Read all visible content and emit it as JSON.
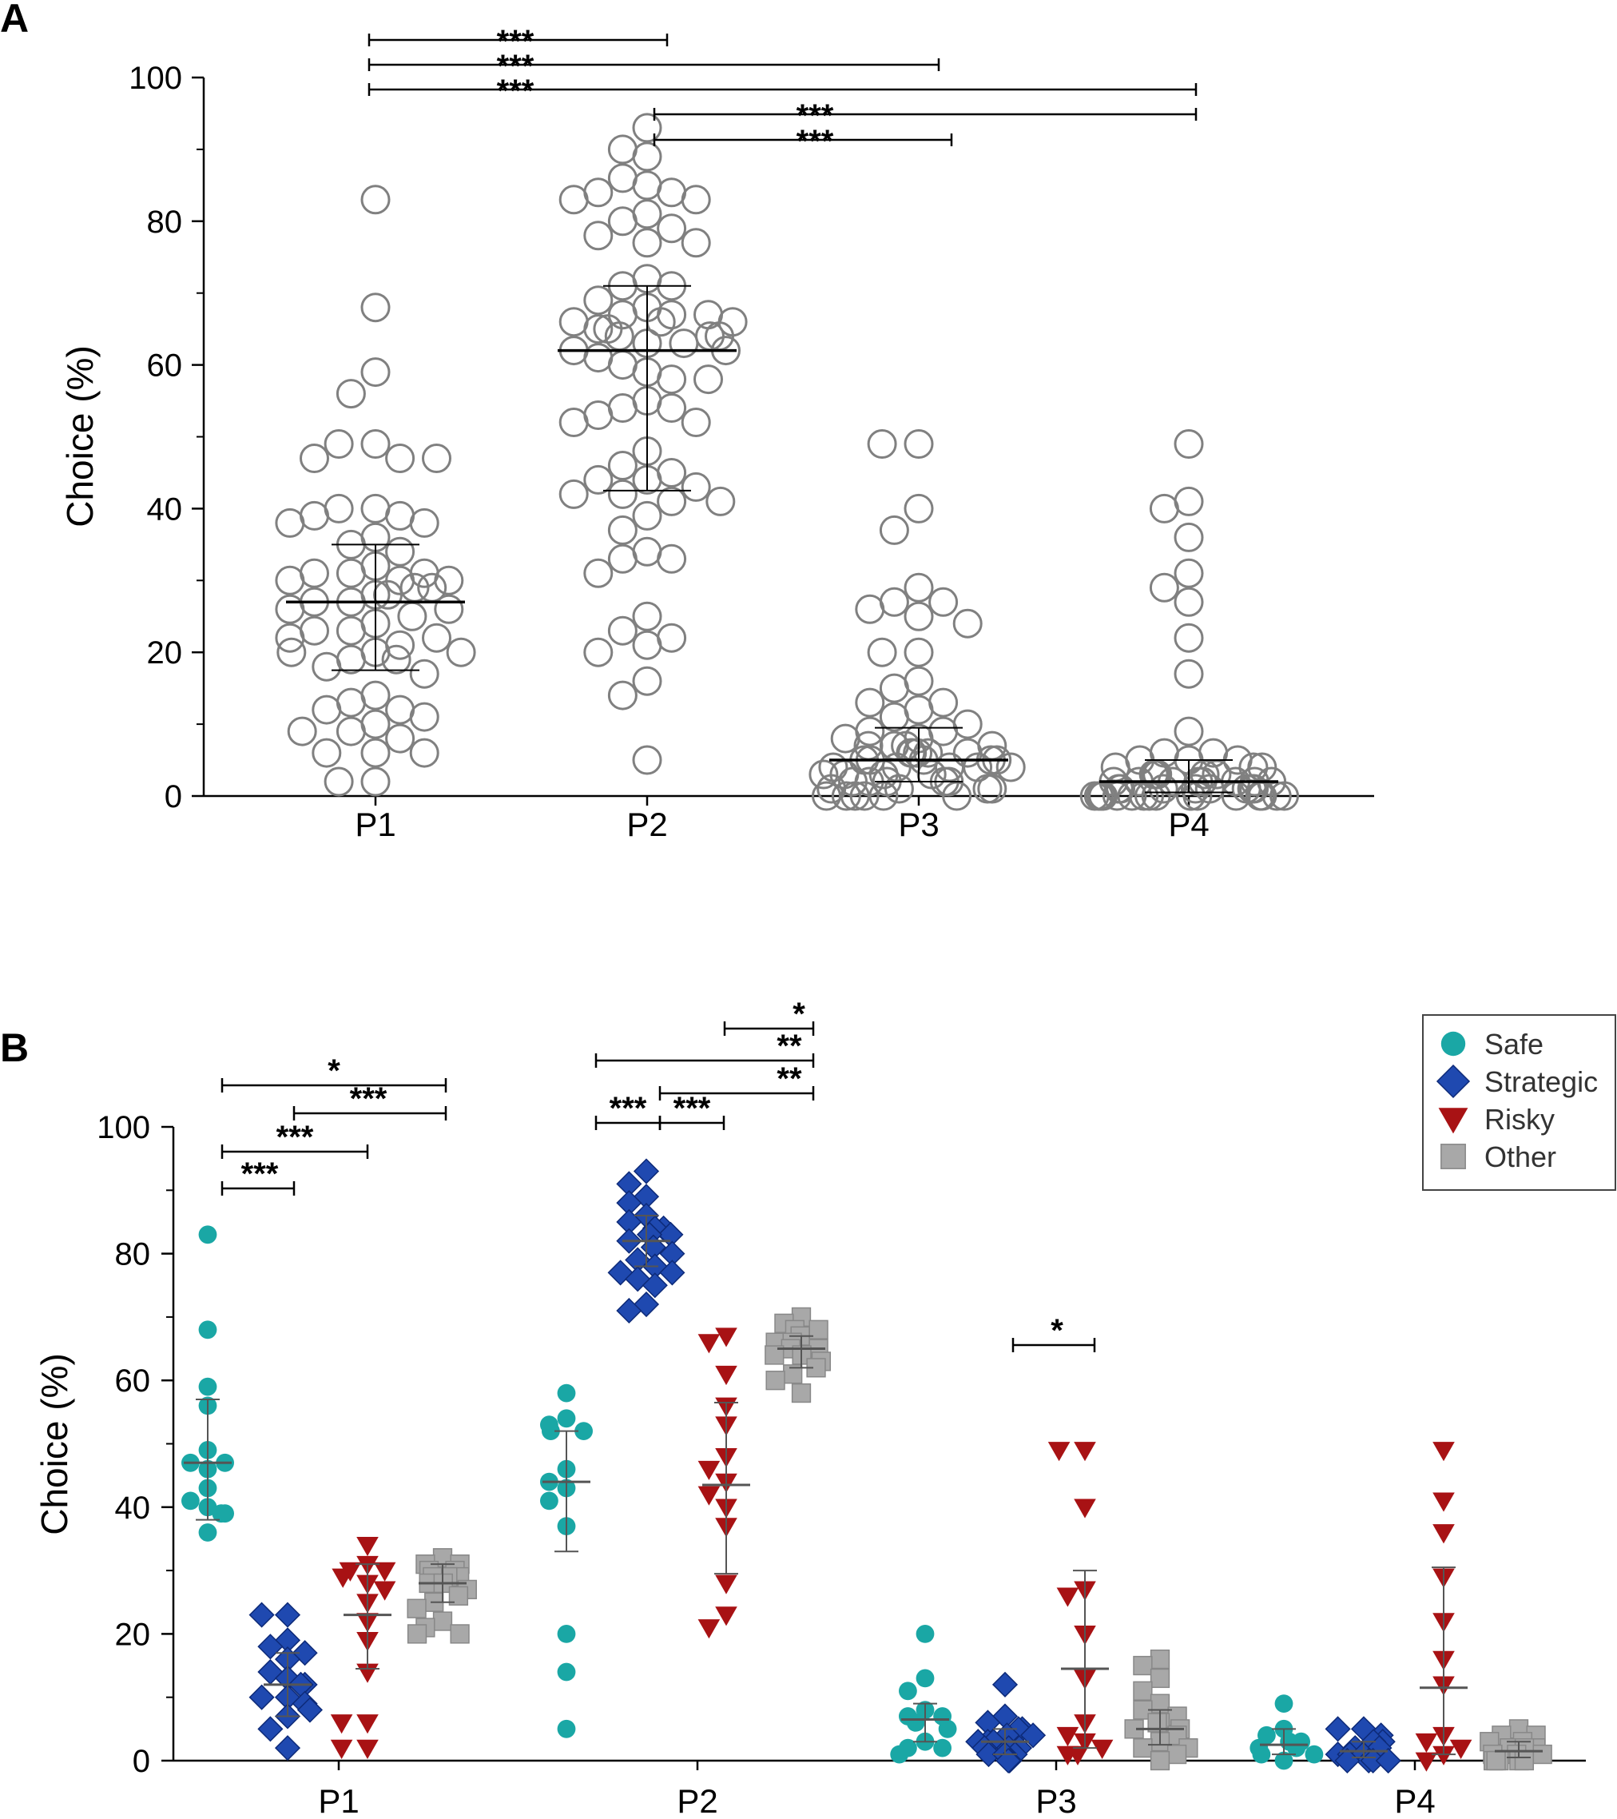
{
  "chart_data": [
    {
      "panel": "A",
      "type": "scatter",
      "ylabel": "Choice (%)",
      "ylim": [
        0,
        100
      ],
      "yticks": [
        "0",
        "20",
        "40",
        "60",
        "80",
        "100"
      ],
      "categories": [
        "P1",
        "P2",
        "P3",
        "P4"
      ],
      "marker_color": "#808080",
      "summary": [
        {
          "category": "P1",
          "median": 27,
          "q1": 17.5,
          "q3": 35
        },
        {
          "category": "P2",
          "median": 62,
          "q1": 42.5,
          "q3": 71
        },
        {
          "category": "P3",
          "median": 5,
          "q1": 2,
          "q3": 9.5
        },
        {
          "category": "P4",
          "median": 2,
          "q1": 0.5,
          "q3": 5
        }
      ],
      "series": [
        {
          "name": "P1",
          "values": [
            83,
            68,
            59,
            56,
            49,
            49,
            47,
            47,
            47,
            40,
            40,
            39,
            39,
            38,
            38,
            36,
            35,
            34,
            32,
            31,
            31,
            31,
            30,
            30,
            30,
            29,
            29,
            28,
            28,
            27,
            27,
            26,
            26,
            25,
            24,
            23,
            23,
            22,
            22,
            21,
            20,
            20,
            20,
            19,
            19,
            18,
            17,
            14,
            13,
            12,
            12,
            11,
            10,
            9,
            9,
            8,
            6,
            6,
            6,
            2,
            2
          ]
        },
        {
          "name": "P2",
          "values": [
            93,
            90,
            89,
            86,
            85,
            84,
            84,
            83,
            83,
            81,
            80,
            79,
            78,
            77,
            77,
            72,
            71,
            71,
            69,
            68,
            67,
            67,
            67,
            66,
            66,
            66,
            65,
            65,
            64,
            64,
            64,
            63,
            63,
            62,
            62,
            61,
            60,
            59,
            58,
            58,
            55,
            54,
            54,
            53,
            52,
            52,
            48,
            46,
            45,
            44,
            44,
            43,
            42,
            42,
            41,
            41,
            39,
            37,
            34,
            33,
            33,
            31,
            25,
            23,
            22,
            21,
            20,
            16,
            14,
            5
          ]
        },
        {
          "name": "P3",
          "values": [
            49,
            49,
            40,
            37,
            29,
            27,
            27,
            26,
            25,
            24,
            20,
            20,
            16,
            15,
            13,
            13,
            12,
            11,
            10,
            9,
            9,
            8,
            8,
            7,
            7,
            7,
            7,
            6,
            6,
            6,
            6,
            6,
            5,
            5,
            5,
            5,
            5,
            4,
            4,
            4,
            4,
            4,
            3,
            3,
            3,
            3,
            2,
            2,
            2,
            2,
            2,
            1,
            1,
            1,
            1,
            0,
            0,
            0,
            0,
            0,
            0
          ]
        },
        {
          "name": "P4",
          "values": [
            49,
            41,
            40,
            36,
            31,
            29,
            27,
            22,
            17,
            9,
            6,
            6,
            5,
            5,
            5,
            4,
            4,
            4,
            3,
            3,
            3,
            3,
            3,
            2,
            2,
            2,
            2,
            2,
            2,
            2,
            2,
            1,
            1,
            1,
            1,
            1,
            1,
            1,
            1,
            0,
            0,
            0,
            0,
            0,
            0,
            0,
            0,
            0,
            0,
            0,
            0,
            0,
            0,
            0,
            0,
            0
          ]
        }
      ],
      "significance": [
        {
          "from": "P1",
          "to": "P2",
          "label": "***"
        },
        {
          "from": "P1",
          "to": "P3",
          "label": "***"
        },
        {
          "from": "P1",
          "to": "P4",
          "label": "***"
        },
        {
          "from": "P2",
          "to": "P4",
          "label": "***"
        },
        {
          "from": "P2",
          "to": "P3",
          "label": "***"
        }
      ]
    },
    {
      "panel": "B",
      "type": "scatter",
      "ylabel": "Choice (%)",
      "ylim": [
        0,
        100
      ],
      "yticks": [
        "0",
        "20",
        "40",
        "60",
        "80",
        "100"
      ],
      "categories": [
        "P1",
        "P2",
        "P3",
        "P4"
      ],
      "legend_position": "top-right",
      "groups": [
        {
          "name": "Safe",
          "marker": "circle",
          "color": "#1aa7a5"
        },
        {
          "name": "Strategic",
          "marker": "diamond",
          "color": "#1f49b0"
        },
        {
          "name": "Risky",
          "marker": "triangle-down",
          "color": "#a81214"
        },
        {
          "name": "Other",
          "marker": "square",
          "color": "#a8a8a8"
        }
      ],
      "series": [
        {
          "category": "P1",
          "group": "Safe",
          "mean": 47,
          "sd_low": 38,
          "sd_high": 57,
          "values": [
            83,
            68,
            59,
            56,
            49,
            47,
            47,
            46,
            43,
            41,
            40,
            39,
            39,
            36
          ]
        },
        {
          "category": "P1",
          "group": "Strategic",
          "mean": 12,
          "sd_low": 7,
          "sd_high": 17,
          "values": [
            23,
            23,
            19,
            18,
            17,
            16,
            14,
            13,
            12,
            12,
            10,
            10,
            9,
            8,
            7,
            5,
            2
          ]
        },
        {
          "category": "P1",
          "group": "Risky",
          "mean": 23,
          "sd_low": 14.5,
          "sd_high": 31,
          "values": [
            34,
            31,
            30,
            30,
            29,
            28,
            27,
            25,
            22,
            19,
            14,
            6,
            6,
            2,
            2
          ]
        },
        {
          "category": "P1",
          "group": "Other",
          "mean": 28,
          "sd_low": 25,
          "sd_high": 31,
          "values": [
            32,
            31,
            31,
            30,
            30,
            29,
            29,
            29,
            28,
            28,
            27,
            26,
            25,
            24,
            22,
            21,
            20,
            20
          ]
        },
        {
          "category": "P2",
          "group": "Safe",
          "mean": 44,
          "sd_low": 33,
          "sd_high": 52,
          "values": [
            58,
            54,
            53,
            52,
            52,
            46,
            44,
            43,
            41,
            37,
            20,
            14,
            5
          ]
        },
        {
          "category": "P2",
          "group": "Strategic",
          "mean": 82,
          "sd_low": 78,
          "sd_high": 86,
          "values": [
            93,
            91,
            89,
            88,
            86,
            85,
            84,
            84,
            83,
            83,
            82,
            81,
            80,
            79,
            78,
            77,
            77,
            76,
            75,
            72,
            71
          ]
        },
        {
          "category": "P2",
          "group": "Risky",
          "mean": 43.5,
          "sd_low": 29.5,
          "sd_high": 56.5,
          "values": [
            67,
            66,
            61,
            56,
            53,
            48,
            46,
            44,
            42,
            40,
            37,
            28,
            23,
            21
          ]
        },
        {
          "category": "P2",
          "group": "Other",
          "mean": 65,
          "sd_low": 62,
          "sd_high": 67,
          "values": [
            70,
            69,
            68,
            68,
            67,
            66,
            66,
            65,
            65,
            64,
            64,
            63,
            62,
            61,
            60,
            58
          ]
        },
        {
          "category": "P3",
          "group": "Safe",
          "mean": 6.5,
          "sd_low": 3,
          "sd_high": 9,
          "values": [
            20,
            13,
            11,
            8,
            7,
            7,
            6,
            5,
            3,
            2,
            2,
            1
          ]
        },
        {
          "category": "P3",
          "group": "Strategic",
          "mean": 3,
          "sd_low": 1,
          "sd_high": 5,
          "values": [
            12,
            7,
            6,
            5,
            5,
            4,
            4,
            3,
            3,
            3,
            2,
            2,
            2,
            1,
            1,
            1,
            0,
            0
          ]
        },
        {
          "category": "P3",
          "group": "Risky",
          "mean": 14.5,
          "sd_low": 2,
          "sd_high": 30,
          "values": [
            49,
            49,
            40,
            27,
            26,
            20,
            13,
            6,
            4,
            3,
            2,
            1,
            1
          ]
        },
        {
          "category": "P3",
          "group": "Other",
          "mean": 5,
          "sd_low": 2.5,
          "sd_high": 8,
          "values": [
            16,
            15,
            13,
            11,
            9,
            8,
            7,
            6,
            6,
            5,
            5,
            4,
            3,
            2,
            2,
            1,
            0
          ]
        },
        {
          "category": "P4",
          "group": "Safe",
          "mean": 2.5,
          "sd_low": 1,
          "sd_high": 5,
          "values": [
            9,
            5,
            4,
            3,
            3,
            2,
            2,
            1,
            1,
            0
          ]
        },
        {
          "category": "P4",
          "group": "Strategic",
          "mean": 1.5,
          "sd_low": 0.5,
          "sd_high": 3,
          "values": [
            5,
            5,
            4,
            3,
            3,
            2,
            2,
            1,
            1,
            1,
            0,
            0,
            0,
            0,
            0
          ]
        },
        {
          "category": "P4",
          "group": "Risky",
          "mean": 11.5,
          "sd_low": 1,
          "sd_high": 30.5,
          "values": [
            49,
            41,
            36,
            29,
            22,
            16,
            12,
            4,
            3,
            2,
            1,
            0
          ]
        },
        {
          "category": "P4",
          "group": "Other",
          "mean": 1.5,
          "sd_low": 0.5,
          "sd_high": 3,
          "values": [
            5,
            4,
            4,
            3,
            3,
            2,
            2,
            2,
            1,
            1,
            1,
            0,
            0,
            0,
            0,
            0
          ]
        }
      ],
      "significance": [
        {
          "category": "P1",
          "from": "Safe",
          "to": "Other",
          "label": "*"
        },
        {
          "category": "P1",
          "from": "Strategic",
          "to": "Other",
          "label": "***"
        },
        {
          "category": "P1",
          "from": "Safe",
          "to": "Risky",
          "label": "***"
        },
        {
          "category": "P1",
          "from": "Safe",
          "to": "Strategic",
          "label": "***"
        },
        {
          "category": "P2",
          "from": "Risky",
          "to": "Other",
          "label": "*"
        },
        {
          "category": "P2",
          "from": "Safe",
          "to": "Other",
          "label": "**"
        },
        {
          "category": "P2",
          "from": "Strategic",
          "to": "Other",
          "label": "**"
        },
        {
          "category": "P2",
          "from": "Safe",
          "to": "Strategic",
          "label": "***"
        },
        {
          "category": "P2",
          "from": "Strategic",
          "to": "Risky",
          "label": "***"
        },
        {
          "category": "P3",
          "from": "Strategic",
          "to": "Risky",
          "label": "*"
        }
      ]
    }
  ]
}
